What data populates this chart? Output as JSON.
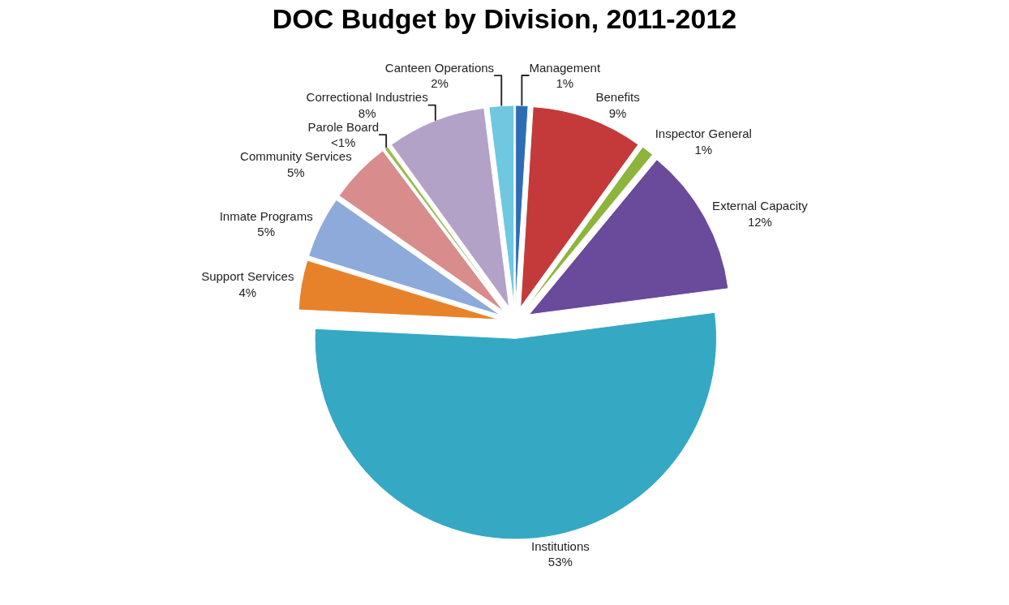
{
  "chart_data": {
    "type": "pie",
    "title": "DOC Budget by Division, 2011-2012",
    "categories": [
      "Management",
      "Benefits",
      "Inspector General",
      "External Capacity",
      "Institutions",
      "Support Services",
      "Inmate Programs",
      "Community Services",
      "Parole Board",
      "Correctional Industries",
      "Canteen Operations"
    ],
    "values": [
      1,
      9,
      1,
      12,
      53,
      4,
      5,
      5,
      0.3,
      8,
      2
    ],
    "value_labels": [
      "1%",
      "9%",
      "1%",
      "12%",
      "53%",
      "4%",
      "5%",
      "5%",
      "<1%",
      "8%",
      "2%"
    ],
    "colors": [
      "#2e6db4",
      "#c43a3a",
      "#8db43c",
      "#6a4a9a",
      "#35a8c4",
      "#e8822a",
      "#8eaadb",
      "#d98c8c",
      "#9bbb59",
      "#b3a2c7",
      "#6fc8e0"
    ],
    "legend": false
  }
}
